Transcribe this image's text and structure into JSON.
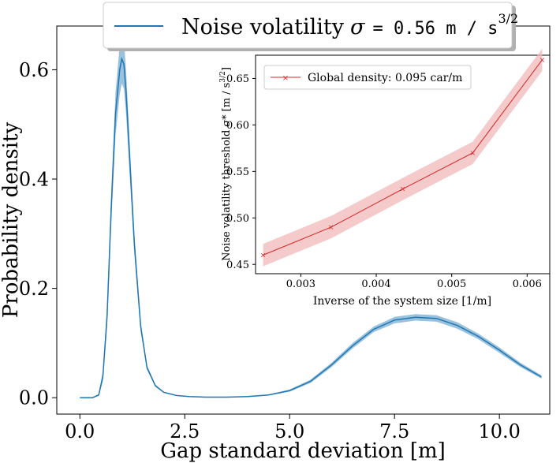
{
  "chart_data": [
    {
      "type": "line",
      "name": "main-plot",
      "xlabel": "Gap standard deviation [m]",
      "ylabel": "Probability density",
      "xlim": [
        -0.55,
        11.2
      ],
      "ylim": [
        -0.03,
        0.68
      ],
      "xticks": [
        "0.0",
        "2.5",
        "5.0",
        "7.5",
        "10.0"
      ],
      "xtick_values": [
        0.0,
        2.5,
        5.0,
        7.5,
        10.0
      ],
      "yticks": [
        "0.0",
        "0.2",
        "0.4",
        "0.6"
      ],
      "ytick_values": [
        0.0,
        0.2,
        0.4,
        0.6
      ],
      "grid": false,
      "legend_position": "top-center",
      "series": [
        {
          "name": "Noise volatility σ = 0.56 m / s^3/2",
          "legend_text": "Noise volatility",
          "legend_symbol": "σ",
          "legend_value": "= 0.56 m / s",
          "legend_exponent": "3/2",
          "color": "#1f77b4",
          "x": [
            0.0,
            0.3,
            0.45,
            0.55,
            0.65,
            0.75,
            0.85,
            0.95,
            1.0,
            1.05,
            1.1,
            1.2,
            1.3,
            1.45,
            1.6,
            1.8,
            2.0,
            2.3,
            2.6,
            3.0,
            3.5,
            4.0,
            4.5,
            5.0,
            5.5,
            6.0,
            6.5,
            7.0,
            7.5,
            8.0,
            8.5,
            9.0,
            9.5,
            10.0,
            10.5,
            11.0
          ],
          "y": [
            0.0,
            0.0,
            0.005,
            0.04,
            0.15,
            0.35,
            0.52,
            0.6,
            0.62,
            0.61,
            0.56,
            0.42,
            0.28,
            0.13,
            0.055,
            0.022,
            0.01,
            0.004,
            0.002,
            0.001,
            0.001,
            0.002,
            0.005,
            0.013,
            0.03,
            0.06,
            0.095,
            0.125,
            0.142,
            0.147,
            0.145,
            0.132,
            0.112,
            0.087,
            0.06,
            0.038
          ],
          "band": [
            0.0,
            0.0,
            0.002,
            0.01,
            0.02,
            0.03,
            0.04,
            0.045,
            0.045,
            0.045,
            0.04,
            0.03,
            0.02,
            0.01,
            0.004,
            0.002,
            0.001,
            0.0,
            0.0,
            0.0,
            0.0,
            0.001,
            0.001,
            0.002,
            0.003,
            0.004,
            0.005,
            0.005,
            0.006,
            0.006,
            0.006,
            0.006,
            0.005,
            0.005,
            0.004,
            0.003
          ]
        }
      ]
    },
    {
      "type": "line",
      "name": "inset-plot",
      "xlabel": "Inverse of the system size [1/m]",
      "ylabel": "Noise volatility threshold σ* [m / s^3/2]",
      "ylabel_text": "Noise volatility threshold",
      "ylabel_symbol": "σ*",
      "ylabel_units": "[m / s",
      "ylabel_exponent": "3/2",
      "ylabel_close": "]",
      "xlim": [
        0.0024,
        0.0063
      ],
      "ylim": [
        0.44,
        0.675
      ],
      "xticks": [
        "0.003",
        "0.004",
        "0.005",
        "0.006"
      ],
      "xtick_values": [
        0.003,
        0.004,
        0.005,
        0.006
      ],
      "yticks": [
        "0.45",
        "0.50",
        "0.55",
        "0.60",
        "0.65"
      ],
      "ytick_values": [
        0.45,
        0.5,
        0.55,
        0.6,
        0.65
      ],
      "grid": false,
      "legend_position": "top-left",
      "series": [
        {
          "name": "Global density: 0.095 car/m",
          "color": "#d62728",
          "band_color": "#f2b8b8",
          "x": [
            0.0025,
            0.0034,
            0.00435,
            0.00528,
            0.0062
          ],
          "y": [
            0.46,
            0.49,
            0.531,
            0.57,
            0.67
          ],
          "band": [
            0.012,
            0.012,
            0.012,
            0.012,
            0.012
          ]
        }
      ]
    }
  ]
}
